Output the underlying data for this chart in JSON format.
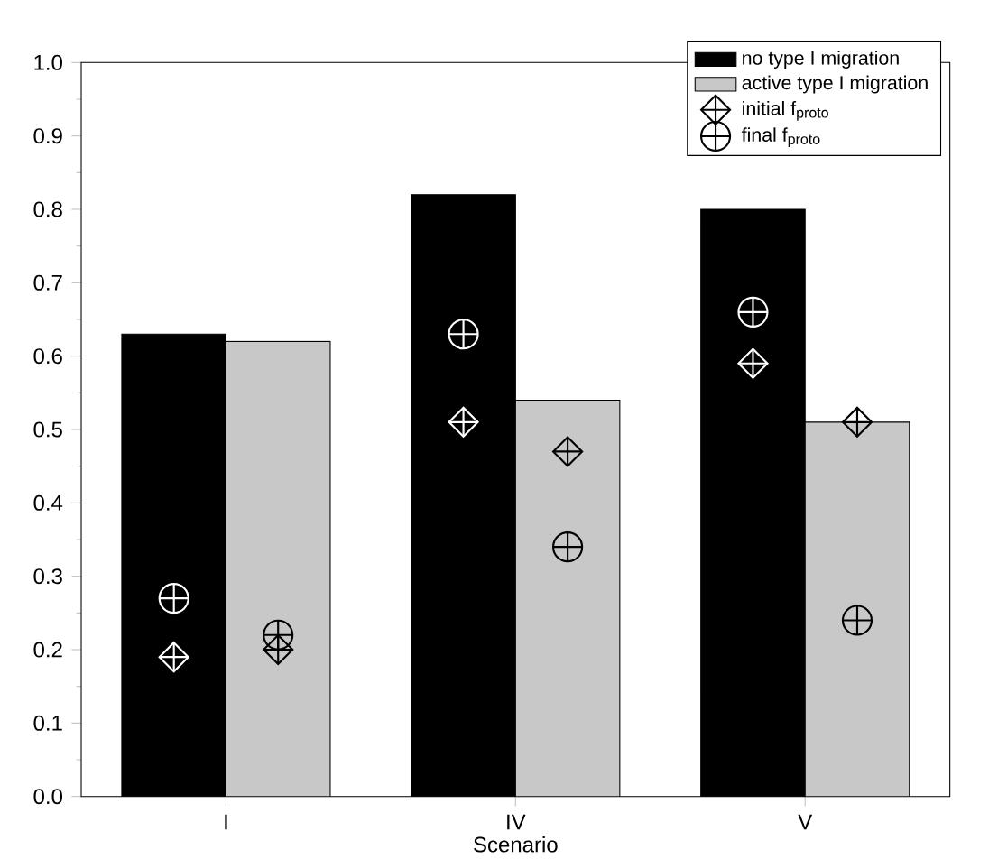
{
  "chart_data": {
    "type": "bar",
    "xlabel": "Scenario",
    "categories": [
      "I",
      "IV",
      "V"
    ],
    "series": [
      {
        "name": "no type I migration",
        "color": "#000000",
        "values": [
          0.63,
          0.82,
          0.8
        ]
      },
      {
        "name": "active type I migration",
        "color": "#c8c8c8",
        "values": [
          0.62,
          0.54,
          0.51
        ]
      },
      {
        "type": "scatter",
        "marker": "diamond",
        "color": "#ffffff",
        "values": [
          0.19,
          0.51,
          0.59
        ]
      },
      {
        "type": "scatter",
        "marker": "diamond",
        "name": "initial f$_{proto}$",
        "color": "#000000",
        "values": [
          0.2,
          0.47,
          0.51
        ]
      },
      {
        "type": "scatter",
        "marker": "circle",
        "color": "#ffffff",
        "values": [
          0.27,
          0.63,
          0.66
        ]
      },
      {
        "type": "scatter",
        "marker": "circle",
        "name": "final f$_{proto}$",
        "color": "#000000",
        "values": [
          0.22,
          0.34,
          0.24
        ]
      }
    ],
    "ylim": [
      0,
      1
    ],
    "yticks": [
      {
        "value": 0,
        "label": "0.0"
      },
      {
        "value": 0.1,
        "label": "0.1"
      },
      {
        "value": 0.2,
        "label": "0.2"
      },
      {
        "value": 0.3,
        "label": "0.3"
      },
      {
        "value": 0.4,
        "label": "0.4"
      },
      {
        "value": 0.5,
        "label": "0.5"
      },
      {
        "value": 0.6,
        "label": "0.6"
      },
      {
        "value": 0.7,
        "label": "0.7"
      },
      {
        "value": 0.8,
        "label": "0.8"
      },
      {
        "value": 0.9,
        "label": "0.9"
      },
      {
        "value": 1,
        "label": "1.0"
      }
    ],
    "legend": "top right"
  }
}
